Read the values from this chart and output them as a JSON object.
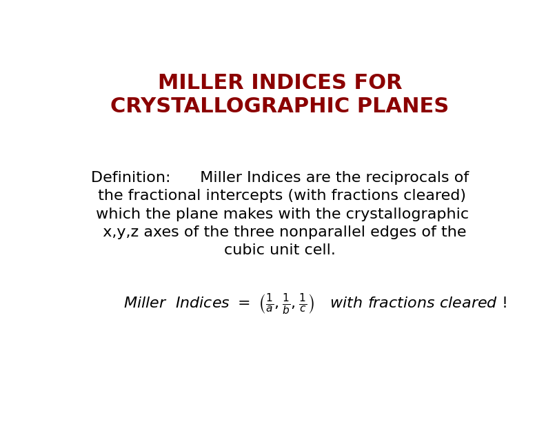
{
  "title_line1": "MILLER INDICES FOR",
  "title_line2": "CRYSTALLOGRAPHIC PLANES",
  "title_color": "#8B0000",
  "title_fontsize": 22,
  "title_fontweight": "bold",
  "body_text_line1": "Definition:      Miller Indices are the reciprocals of",
  "body_text_line2": " the fractional intercepts (with fractions cleared)",
  "body_text_line3": " which the plane makes with the crystallographic",
  "body_text_line4": "  x,y,z axes of the three nonparallel edges of the",
  "body_text_line5": "cubic unit cell.",
  "body_fontsize": 16,
  "body_color": "#000000",
  "formula_fontsize": 13,
  "background_color": "#ffffff",
  "fig_width": 7.92,
  "fig_height": 6.12
}
